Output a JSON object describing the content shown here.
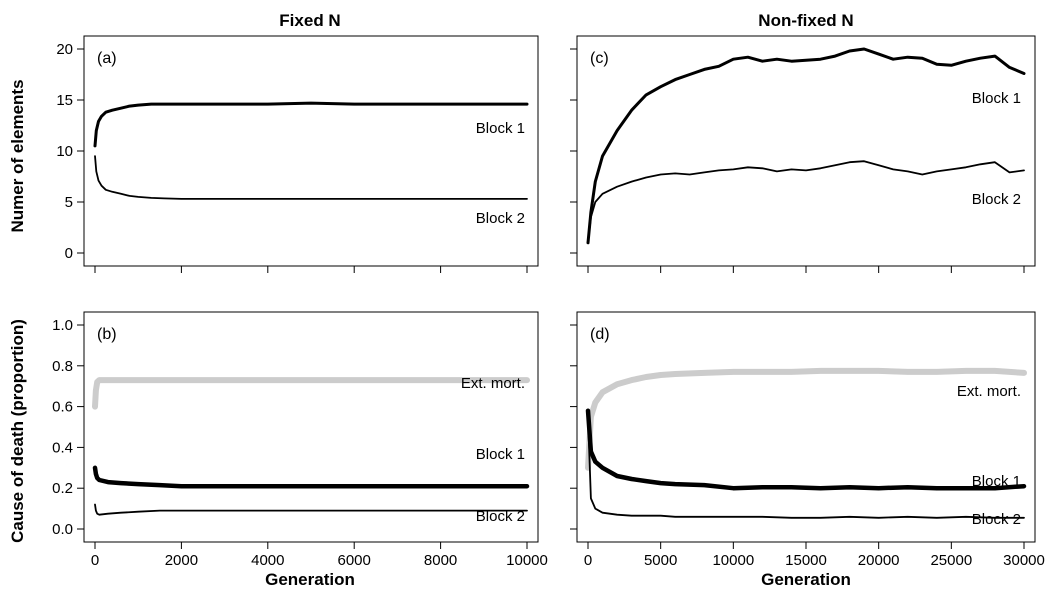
{
  "figure": {
    "column_titles": [
      "Fixed N",
      "Non-fixed N"
    ],
    "row_ylabels": [
      "Numer of elements",
      "Cause of death (proportion)"
    ],
    "xlabel": "Generation"
  },
  "chart_data": [
    {
      "type": "line",
      "panel_label": "(a)",
      "xlim": [
        0,
        10000
      ],
      "ylim": [
        0,
        20
      ],
      "xticks": [
        0,
        2000,
        4000,
        6000,
        8000,
        10000
      ],
      "yticks": [
        0,
        5,
        10,
        15,
        20
      ],
      "xtick_labels_shown": false,
      "series": [
        {
          "name": "Block 1",
          "color": "#000000",
          "x": [
            0,
            30,
            80,
            150,
            250,
            400,
            600,
            800,
            1000,
            1300,
            1600,
            2000,
            3000,
            4000,
            5000,
            6000,
            7000,
            8000,
            9000,
            10000
          ],
          "y": [
            10.5,
            12.0,
            12.9,
            13.4,
            13.8,
            14.0,
            14.2,
            14.4,
            14.5,
            14.6,
            14.6,
            14.6,
            14.6,
            14.6,
            14.7,
            14.6,
            14.6,
            14.6,
            14.6,
            14.6
          ]
        },
        {
          "name": "Block 2",
          "color": "#000000",
          "x": [
            0,
            30,
            80,
            150,
            250,
            400,
            600,
            800,
            1000,
            1300,
            1600,
            2000,
            3000,
            4000,
            5000,
            6000,
            7000,
            8000,
            9000,
            10000
          ],
          "y": [
            9.5,
            8.0,
            7.1,
            6.6,
            6.2,
            6.0,
            5.8,
            5.6,
            5.5,
            5.4,
            5.35,
            5.3,
            5.3,
            5.3,
            5.3,
            5.3,
            5.3,
            5.3,
            5.3,
            5.3
          ]
        }
      ]
    },
    {
      "type": "line",
      "panel_label": "(b)",
      "xlim": [
        0,
        10000
      ],
      "ylim": [
        0,
        1.0
      ],
      "xticks": [
        0,
        2000,
        4000,
        6000,
        8000,
        10000
      ],
      "yticks": [
        0.0,
        0.2,
        0.4,
        0.6,
        0.8,
        1.0
      ],
      "xtick_labels_shown": true,
      "series": [
        {
          "name": "Ext. mort.",
          "color": "#cccccc",
          "x": [
            0,
            20,
            50,
            100,
            300,
            1000,
            2000,
            4000,
            6000,
            8000,
            10000
          ],
          "y": [
            0.6,
            0.68,
            0.72,
            0.73,
            0.73,
            0.73,
            0.73,
            0.73,
            0.73,
            0.73,
            0.73
          ]
        },
        {
          "name": "Block 1",
          "color": "#000000",
          "x": [
            0,
            20,
            50,
            100,
            300,
            600,
            1000,
            1500,
            2000,
            4000,
            6000,
            8000,
            10000
          ],
          "y": [
            0.3,
            0.27,
            0.25,
            0.24,
            0.23,
            0.225,
            0.22,
            0.215,
            0.21,
            0.21,
            0.21,
            0.21,
            0.21
          ]
        },
        {
          "name": "Block 2",
          "color": "#000000",
          "x": [
            0,
            20,
            50,
            100,
            300,
            600,
            1000,
            1500,
            2000,
            4000,
            6000,
            8000,
            10000
          ],
          "y": [
            0.12,
            0.09,
            0.075,
            0.07,
            0.075,
            0.08,
            0.085,
            0.09,
            0.09,
            0.09,
            0.09,
            0.09,
            0.09
          ]
        }
      ]
    },
    {
      "type": "line",
      "panel_label": "(c)",
      "xlim": [
        0,
        30000
      ],
      "ylim": [
        0,
        20
      ],
      "xticks": [
        0,
        5000,
        10000,
        15000,
        20000,
        25000,
        30000
      ],
      "yticks": [
        0,
        5,
        10,
        15,
        20
      ],
      "xtick_labels_shown": false,
      "series": [
        {
          "name": "Block 1",
          "color": "#000000",
          "x": [
            0,
            200,
            500,
            1000,
            2000,
            3000,
            4000,
            5000,
            6000,
            7000,
            8000,
            9000,
            10000,
            11000,
            12000,
            13000,
            14000,
            15000,
            16000,
            17000,
            18000,
            19000,
            20000,
            21000,
            22000,
            23000,
            24000,
            25000,
            26000,
            27000,
            28000,
            29000,
            30000
          ],
          "y": [
            1.0,
            4.0,
            7.0,
            9.5,
            12.0,
            14.0,
            15.5,
            16.3,
            17.0,
            17.5,
            18.0,
            18.3,
            19.0,
            19.2,
            18.8,
            19.0,
            18.8,
            18.9,
            19.0,
            19.3,
            19.8,
            20.0,
            19.5,
            19.0,
            19.2,
            19.1,
            18.5,
            18.4,
            18.8,
            19.1,
            19.3,
            18.2,
            17.6
          ]
        },
        {
          "name": "Block 2",
          "color": "#000000",
          "x": [
            0,
            200,
            500,
            1000,
            2000,
            3000,
            4000,
            5000,
            6000,
            7000,
            8000,
            9000,
            10000,
            11000,
            12000,
            13000,
            14000,
            15000,
            16000,
            17000,
            18000,
            19000,
            20000,
            21000,
            22000,
            23000,
            24000,
            25000,
            26000,
            27000,
            28000,
            29000,
            30000
          ],
          "y": [
            1.0,
            3.5,
            5.0,
            5.8,
            6.5,
            7.0,
            7.4,
            7.7,
            7.8,
            7.7,
            7.9,
            8.1,
            8.2,
            8.4,
            8.3,
            8.0,
            8.2,
            8.1,
            8.3,
            8.6,
            8.9,
            9.0,
            8.6,
            8.2,
            8.0,
            7.7,
            8.0,
            8.2,
            8.4,
            8.7,
            8.9,
            7.9,
            8.1
          ]
        }
      ]
    },
    {
      "type": "line",
      "panel_label": "(d)",
      "xlim": [
        0,
        30000
      ],
      "ylim": [
        0,
        1.0
      ],
      "xticks": [
        0,
        5000,
        10000,
        15000,
        20000,
        25000,
        30000
      ],
      "yticks": [
        0.0,
        0.2,
        0.4,
        0.6,
        0.8,
        1.0
      ],
      "xtick_labels_shown": true,
      "series": [
        {
          "name": "Ext. mort.",
          "color": "#cccccc",
          "x": [
            0,
            200,
            500,
            1000,
            2000,
            3000,
            4000,
            5000,
            6000,
            8000,
            10000,
            12000,
            14000,
            16000,
            18000,
            20000,
            22000,
            24000,
            26000,
            28000,
            30000
          ],
          "y": [
            0.3,
            0.55,
            0.62,
            0.67,
            0.71,
            0.73,
            0.745,
            0.755,
            0.76,
            0.765,
            0.77,
            0.77,
            0.77,
            0.775,
            0.775,
            0.775,
            0.77,
            0.77,
            0.775,
            0.775,
            0.765
          ]
        },
        {
          "name": "Block 1",
          "color": "#000000",
          "x": [
            0,
            200,
            500,
            1000,
            2000,
            3000,
            4000,
            5000,
            6000,
            8000,
            10000,
            12000,
            14000,
            16000,
            18000,
            20000,
            22000,
            24000,
            26000,
            28000,
            30000
          ],
          "y": [
            0.58,
            0.38,
            0.33,
            0.3,
            0.26,
            0.245,
            0.235,
            0.225,
            0.22,
            0.215,
            0.2,
            0.205,
            0.205,
            0.2,
            0.205,
            0.2,
            0.205,
            0.2,
            0.2,
            0.2,
            0.21
          ]
        },
        {
          "name": "Block 2",
          "color": "#000000",
          "x": [
            0,
            200,
            500,
            1000,
            2000,
            3000,
            4000,
            5000,
            6000,
            8000,
            10000,
            12000,
            14000,
            16000,
            18000,
            20000,
            22000,
            24000,
            26000,
            28000,
            30000
          ],
          "y": [
            0.55,
            0.15,
            0.1,
            0.08,
            0.07,
            0.065,
            0.065,
            0.065,
            0.06,
            0.06,
            0.06,
            0.06,
            0.055,
            0.055,
            0.06,
            0.055,
            0.06,
            0.055,
            0.06,
            0.055,
            0.055
          ]
        }
      ]
    }
  ]
}
